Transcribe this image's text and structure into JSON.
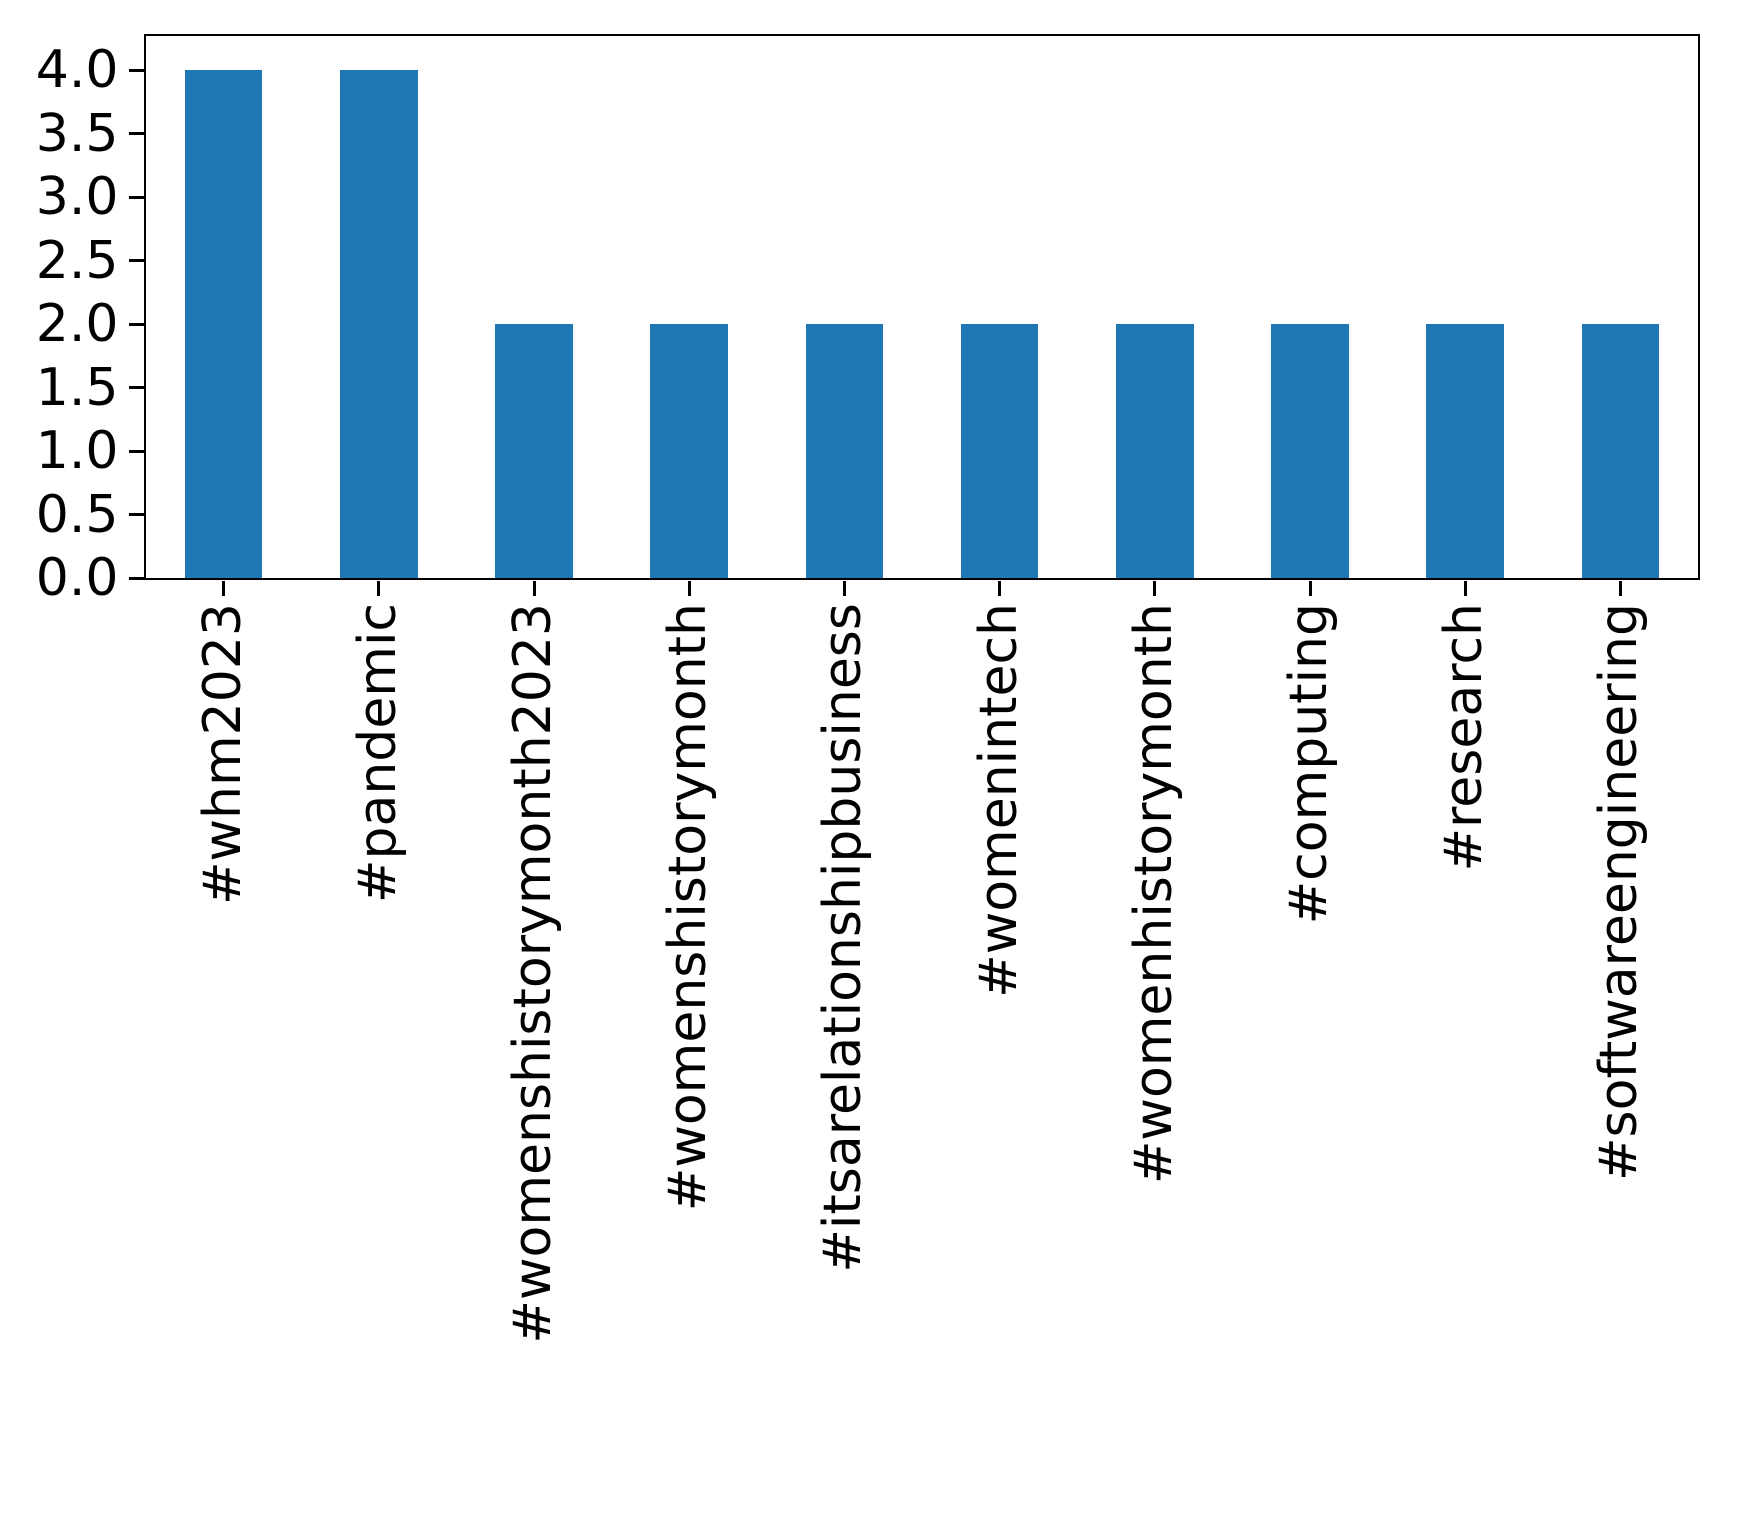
{
  "chart_data": {
    "type": "bar",
    "title": "",
    "xlabel": "",
    "ylabel": "",
    "categories": [
      "#whm2023",
      "#pandemic",
      "#womenshistorymonth2023",
      "#womenshistorymonth",
      "#itsarelationshipbusiness",
      "#womenintech",
      "#womenhistorymonth",
      "#computing",
      "#research",
      "#softwareengineering"
    ],
    "values": [
      4,
      4,
      2,
      2,
      2,
      2,
      2,
      2,
      2,
      2
    ],
    "ytick_labels": [
      "0.0",
      "0.5",
      "1.0",
      "1.5",
      "2.0",
      "2.5",
      "3.0",
      "3.5",
      "4.0"
    ],
    "ylim": [
      0,
      4.27
    ],
    "bar_color": "#1f77b4",
    "axis_color": "#000000",
    "background_color": "#ffffff",
    "bar_width_fraction": 0.5,
    "x_label_rotation_deg": 90,
    "grid": false,
    "legend_position": "none"
  }
}
